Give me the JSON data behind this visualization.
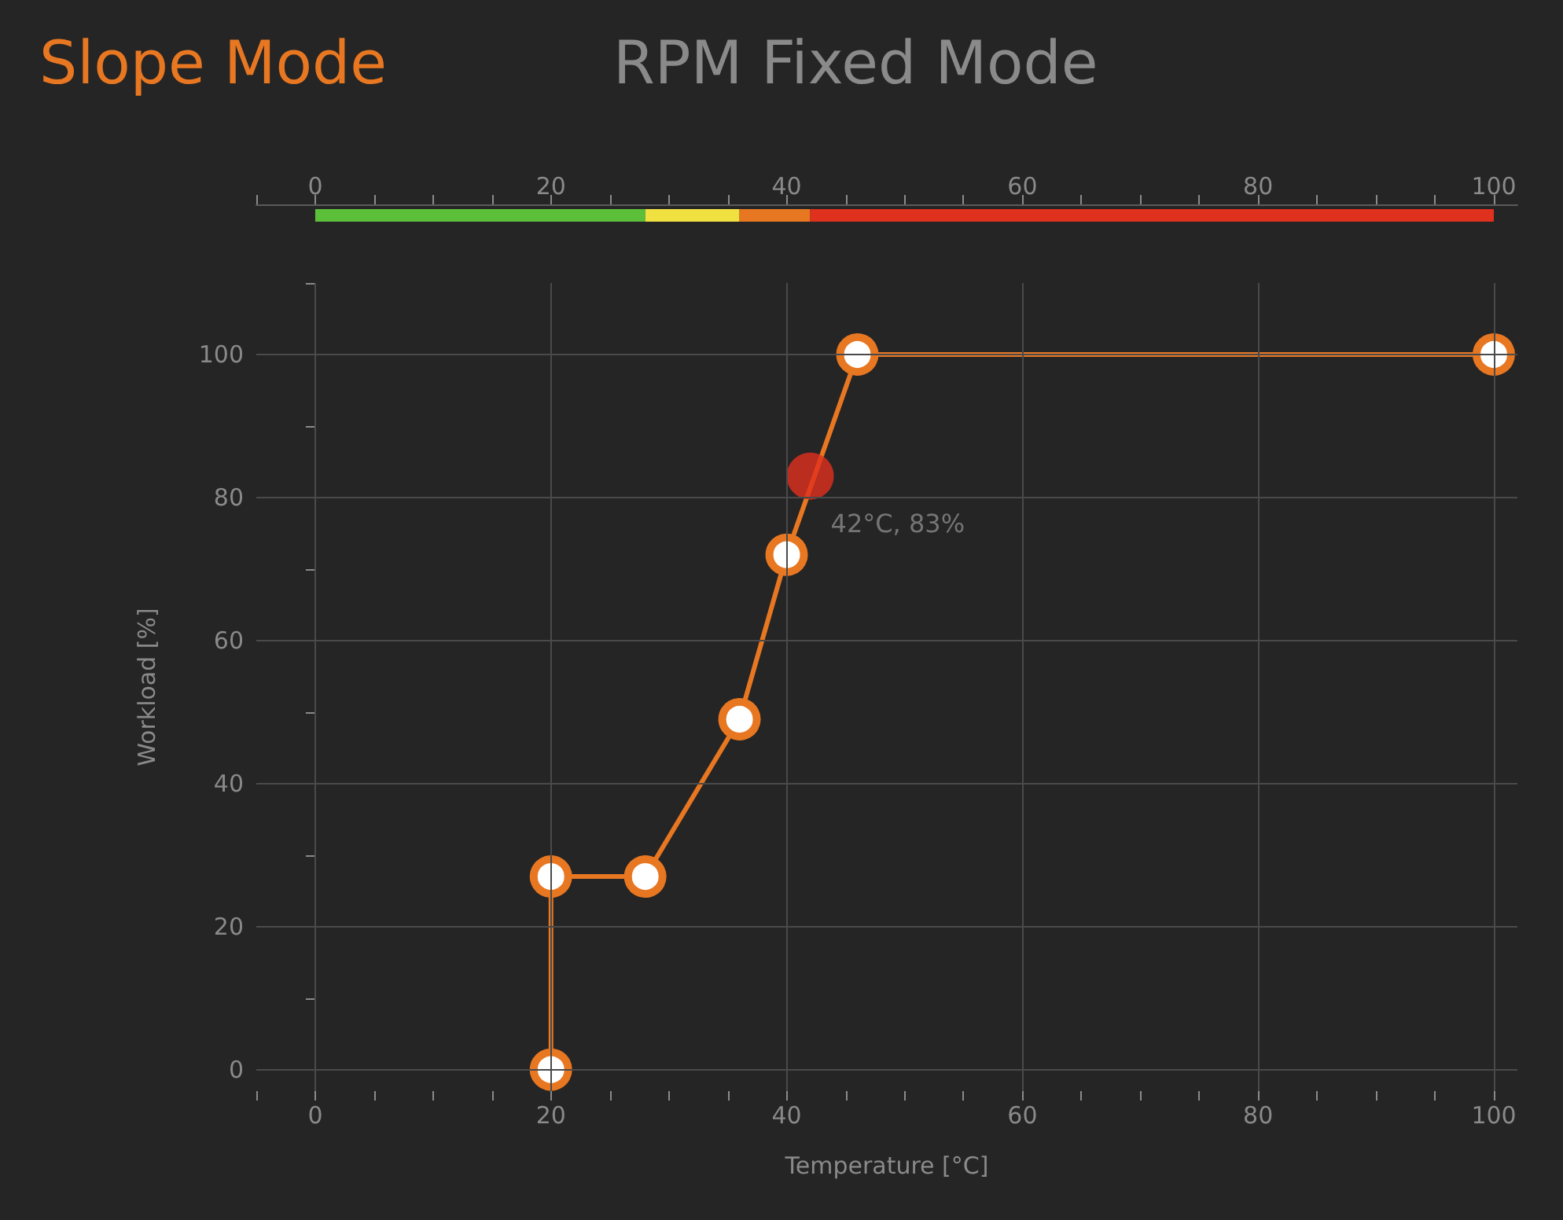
{
  "chart_data": [
    {
      "type": "bar",
      "title": "Slope Mode",
      "subtitle": "RPM Fixed Mode",
      "orientation": "horizontal",
      "stacked": true,
      "tick_labels": "x",
      "categories": [
        null
      ],
      "series": [
        {
          "color": "#5cbf3a",
          "values": [
            28
          ]
        },
        {
          "color": "#f0e040",
          "values": [
            8
          ]
        },
        {
          "color": "#e87722",
          "values": [
            6
          ]
        },
        {
          "color": "#e0301e",
          "values": [
            58
          ]
        }
      ],
      "xlim": [
        -5,
        102
      ],
      "xticks": [
        {
          "value": -5,
          "label": null
        },
        0,
        {
          "value": 5,
          "label": null
        },
        {
          "value": 10,
          "label": null
        },
        {
          "value": 15,
          "label": null
        },
        20,
        {
          "value": 25,
          "label": null
        },
        {
          "value": 30,
          "label": null
        },
        {
          "value": 35,
          "label": null
        },
        40,
        {
          "value": 45,
          "label": null
        },
        {
          "value": 50,
          "label": null
        },
        {
          "value": 55,
          "label": null
        },
        60,
        {
          "value": 65,
          "label": null
        },
        {
          "value": 70,
          "label": null
        },
        {
          "value": 75,
          "label": null
        },
        80,
        {
          "value": 85,
          "label": null
        },
        {
          "value": 90,
          "label": null
        },
        {
          "value": 95,
          "label": null
        },
        100
      ]
    },
    {
      "type": "line",
      "xlabel": "Temperature [°C]",
      "ylabel": "Workload [%]",
      "x": [
        20,
        20,
        28,
        36,
        40,
        46,
        100
      ],
      "series": [
        {
          "color": "#e87722",
          "values": [
            0,
            27,
            27,
            49,
            72,
            100,
            100
          ]
        },
        {
          "type": "scatter",
          "color": "#e0301e",
          "x": [
            42
          ],
          "values": [
            83
          ]
        }
      ],
      "annotations": [
        {
          "text": "42°C, 83%",
          "x": 42,
          "y": 83
        }
      ],
      "xlim": [
        -5,
        102
      ],
      "ylim": [
        -3,
        110
      ],
      "xticks": [
        {
          "value": -5,
          "label": null
        },
        0,
        {
          "value": 5,
          "label": null
        },
        {
          "value": 10,
          "label": null
        },
        {
          "value": 15,
          "label": null
        },
        20,
        {
          "value": 25,
          "label": null
        },
        {
          "value": 30,
          "label": null
        },
        {
          "value": 35,
          "label": null
        },
        40,
        {
          "value": 45,
          "label": null
        },
        {
          "value": 50,
          "label": null
        },
        {
          "value": 55,
          "label": null
        },
        60,
        {
          "value": 65,
          "label": null
        },
        {
          "value": 70,
          "label": null
        },
        {
          "value": 75,
          "label": null
        },
        80,
        {
          "value": 85,
          "label": null
        },
        {
          "value": 90,
          "label": null
        },
        {
          "value": 95,
          "label": null
        },
        100
      ],
      "yticks": [
        0,
        {
          "value": 10,
          "label": null
        },
        20,
        {
          "value": 30,
          "label": null
        },
        40,
        {
          "value": 50,
          "label": null
        },
        60,
        {
          "value": 70,
          "label": null
        },
        80,
        {
          "value": 90,
          "label": null
        },
        100,
        {
          "value": 110,
          "label": null
        }
      ],
      "grid": true,
      "marker": "circle",
      "line_style": "solid"
    }
  ]
}
